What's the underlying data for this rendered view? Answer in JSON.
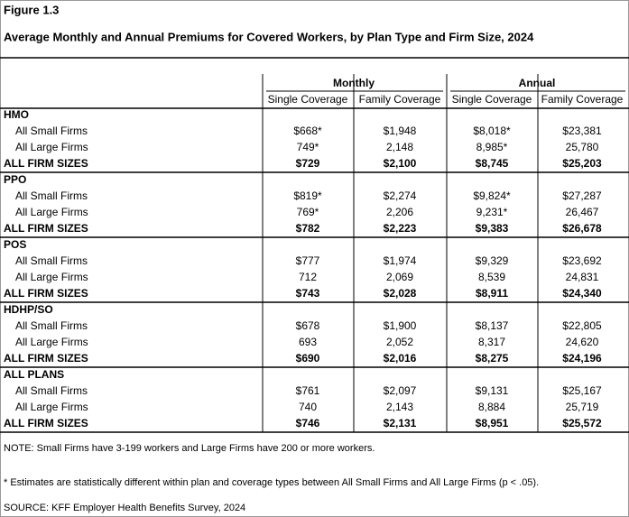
{
  "header": {
    "figure": "Figure 1.3",
    "title": "Average Monthly and Annual Premiums for Covered Workers, by Plan Type and Firm Size, 2024"
  },
  "table": {
    "column_groups": [
      "Monthly",
      "Annual"
    ],
    "columns": [
      "Single Coverage",
      "Family Coverage",
      "Single Coverage",
      "Family Coverage"
    ],
    "sections": [
      {
        "name": "HMO",
        "rows": [
          {
            "label": "All Small Firms",
            "cells": [
              "$668*",
              "$1,948",
              "$8,018*",
              "$23,381"
            ]
          },
          {
            "label": "All Large Firms",
            "cells": [
              "749*",
              "2,148",
              "8,985*",
              "25,780"
            ]
          },
          {
            "label": "ALL FIRM SIZES",
            "cells": [
              "$729",
              "$2,100",
              "$8,745",
              "$25,203"
            ]
          }
        ]
      },
      {
        "name": "PPO",
        "rows": [
          {
            "label": "All Small Firms",
            "cells": [
              "$819*",
              "$2,274",
              "$9,824*",
              "$27,287"
            ]
          },
          {
            "label": "All Large Firms",
            "cells": [
              "769*",
              "2,206",
              "9,231*",
              "26,467"
            ]
          },
          {
            "label": "ALL FIRM SIZES",
            "cells": [
              "$782",
              "$2,223",
              "$9,383",
              "$26,678"
            ]
          }
        ]
      },
      {
        "name": "POS",
        "rows": [
          {
            "label": "All Small Firms",
            "cells": [
              "$777",
              "$1,974",
              "$9,329",
              "$23,692"
            ]
          },
          {
            "label": "All Large Firms",
            "cells": [
              "712",
              "2,069",
              "8,539",
              "24,831"
            ]
          },
          {
            "label": "ALL FIRM SIZES",
            "cells": [
              "$743",
              "$2,028",
              "$8,911",
              "$24,340"
            ]
          }
        ]
      },
      {
        "name": "HDHP/SO",
        "rows": [
          {
            "label": "All Small Firms",
            "cells": [
              "$678",
              "$1,900",
              "$8,137",
              "$22,805"
            ]
          },
          {
            "label": "All Large Firms",
            "cells": [
              "693",
              "2,052",
              "8,317",
              "24,620"
            ]
          },
          {
            "label": "ALL FIRM SIZES",
            "cells": [
              "$690",
              "$2,016",
              "$8,275",
              "$24,196"
            ]
          }
        ]
      },
      {
        "name": "ALL PLANS",
        "rows": [
          {
            "label": "All Small Firms",
            "cells": [
              "$761",
              "$2,097",
              "$9,131",
              "$25,167"
            ]
          },
          {
            "label": "All Large Firms",
            "cells": [
              "740",
              "2,143",
              "8,884",
              "25,719"
            ]
          },
          {
            "label": "ALL FIRM SIZES",
            "cells": [
              "$746",
              "$2,131",
              "$8,951",
              "$25,572"
            ]
          }
        ]
      }
    ]
  },
  "notes": [
    "NOTE: Small Firms have 3-199 workers and Large Firms have 200 or more workers.",
    "* Estimates are statistically different within plan and coverage types between All Small Firms and All Large Firms (p < .05).",
    "SOURCE: KFF Employer Health Benefits Survey, 2024"
  ]
}
